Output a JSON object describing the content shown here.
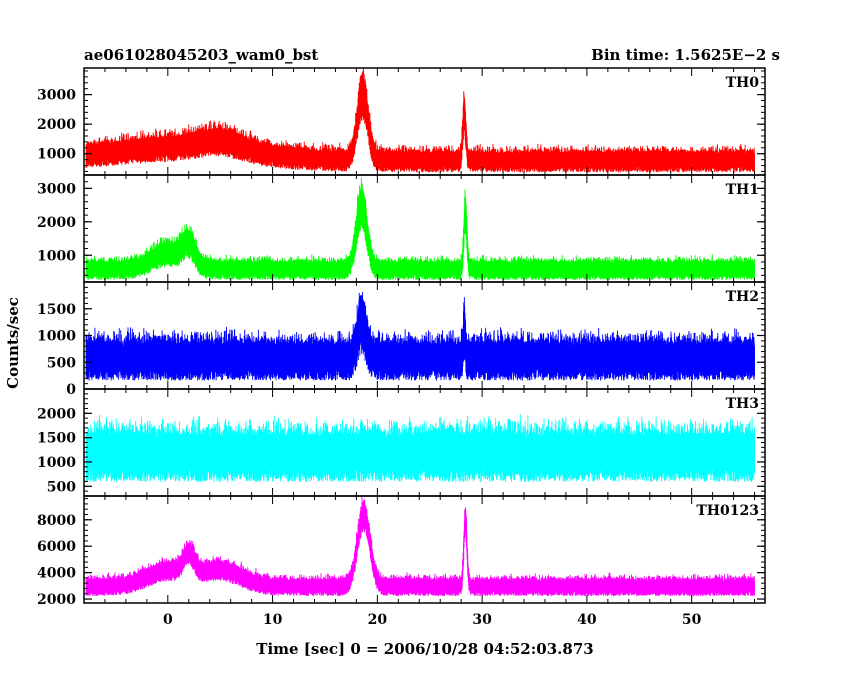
{
  "header": {
    "left_title": "ae061028045203_wam0_bst",
    "right_title": "Bin time: 1.5625E−2 s"
  },
  "axes": {
    "xlabel": "Time [sec] 0 = 2006/10/28 04:52:03.873",
    "ylabel": "Counts/sec"
  },
  "chart_data": {
    "type": "line",
    "xlim": [
      -8,
      57
    ],
    "x_ticks": [
      0,
      10,
      20,
      30,
      40,
      50
    ],
    "x_range_data": [
      -7.8,
      56
    ],
    "colors": {
      "TH0": "#ff0000",
      "TH1": "#00ff00",
      "TH2": "#0000ff",
      "TH3": "#00ffff",
      "TH0123": "#ff00ff"
    },
    "panels": [
      {
        "name": "TH0",
        "color": "#ff0000",
        "ylim": [
          280,
          3900
        ],
        "yticks": [
          1000,
          2000,
          3000
        ],
        "ytick_labels": [
          "1000",
          "2000",
          "3000"
        ],
        "baseline": 800,
        "noise": 330,
        "floor": 300,
        "features": [
          [
            -1,
            8,
            150
          ],
          [
            2,
            6,
            300
          ],
          [
            5,
            2,
            300
          ],
          [
            18.6,
            0.5,
            2200
          ],
          [
            28.3,
            0.15,
            1600
          ]
        ]
      },
      {
        "name": "TH1",
        "color": "#00ff00",
        "ylim": [
          200,
          3400
        ],
        "yticks": [
          1000,
          2000,
          3000
        ],
        "ytick_labels": [
          "1000",
          "2000",
          "3000"
        ],
        "baseline": 600,
        "noise": 260,
        "floor": 200,
        "features": [
          [
            0,
            1.5,
            500
          ],
          [
            2,
            0.6,
            600
          ],
          [
            18.5,
            0.5,
            1900
          ],
          [
            28.4,
            0.15,
            1700
          ]
        ]
      },
      {
        "name": "TH2",
        "color": "#0000ff",
        "ylim": [
          0,
          2000
        ],
        "yticks": [
          0,
          500,
          1000,
          1500
        ],
        "ytick_labels": [
          "0",
          "500",
          "1000",
          "1500"
        ],
        "baseline": 600,
        "noise": 340,
        "floor": 30,
        "features": [
          [
            18.5,
            0.4,
            700
          ],
          [
            28.3,
            0.1,
            500
          ]
        ]
      },
      {
        "name": "TH3",
        "color": "#00ffff",
        "ylim": [
          300,
          2500
        ],
        "yticks": [
          500,
          1000,
          1500,
          2000
        ],
        "ytick_labels": [
          "500",
          "1000",
          "1500",
          "2000"
        ],
        "baseline": 1200,
        "noise": 470,
        "floor": 380,
        "features": []
      },
      {
        "name": "TH0123",
        "color": "#ff00ff",
        "ylim": [
          1700,
          9800
        ],
        "yticks": [
          2000,
          4000,
          6000,
          8000
        ],
        "ytick_labels": [
          "2000",
          "4000",
          "6000",
          "8000"
        ],
        "baseline": 3000,
        "noise": 600,
        "floor": 2100,
        "features": [
          [
            0,
            2,
            1200
          ],
          [
            2,
            0.5,
            1500
          ],
          [
            5,
            2,
            1200
          ],
          [
            18.7,
            0.6,
            5400
          ],
          [
            28.4,
            0.15,
            5000
          ]
        ]
      }
    ]
  }
}
